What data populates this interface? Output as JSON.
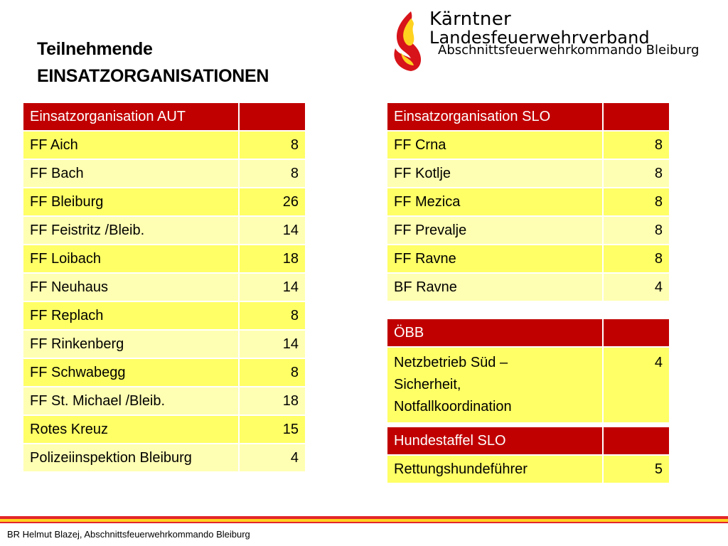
{
  "title": {
    "line1": "Teilnehmende",
    "line2": "EINSATZORGANISATIONEN"
  },
  "logo": {
    "line1": "Kärntner",
    "line2": "Landesfeuerwehrverband",
    "line3": "Abschnittsfeuerwehrkommando Bleiburg",
    "colors": {
      "flame_red": "#d7141a",
      "flame_yellow": "#ffd21f"
    }
  },
  "colors": {
    "header": "#c00000",
    "row_odd": "#ffff66",
    "row_even": "#ffffb3"
  },
  "aut": {
    "header": "Einsatzorganisation AUT",
    "rows": [
      {
        "name": "FF Aich",
        "count": "8"
      },
      {
        "name": "FF Bach",
        "count": "8"
      },
      {
        "name": "FF Bleiburg",
        "count": "26"
      },
      {
        "name": "FF Feistritz /Bleib.",
        "count": "14"
      },
      {
        "name": "FF Loibach",
        "count": "18"
      },
      {
        "name": "FF Neuhaus",
        "count": "14"
      },
      {
        "name": "FF Replach",
        "count": "8"
      },
      {
        "name": "FF Rinkenberg",
        "count": "14"
      },
      {
        "name": "FF Schwabegg",
        "count": "8"
      },
      {
        "name": "FF St. Michael /Bleib.",
        "count": "18"
      },
      {
        "name": "Rotes Kreuz",
        "count": "15"
      },
      {
        "name": "Polizeiinspektion Bleiburg",
        "count": "4"
      }
    ]
  },
  "slo": {
    "header": "Einsatzorganisation SLO",
    "rows": [
      {
        "name": "FF Crna",
        "count": "8"
      },
      {
        "name": "FF Kotlje",
        "count": "8"
      },
      {
        "name": "FF Mezica",
        "count": "8"
      },
      {
        "name": "FF Prevalje",
        "count": "8"
      },
      {
        "name": "FF Ravne",
        "count": "8"
      },
      {
        "name": "BF Ravne",
        "count": "4"
      }
    ]
  },
  "obb": {
    "header": "ÖBB",
    "rows": [
      {
        "name_lines": [
          "Netzbetrieb Süd –",
          "Sicherheit,",
          "Notfallkoordination"
        ],
        "count": "4"
      }
    ]
  },
  "hund": {
    "header": "Hundestaffel SLO",
    "rows": [
      {
        "name": "Rettungshundeführer",
        "count": "5"
      }
    ]
  },
  "footer": "BR Helmut Blazej, Abschnittsfeuerwehrkommando Bleiburg"
}
